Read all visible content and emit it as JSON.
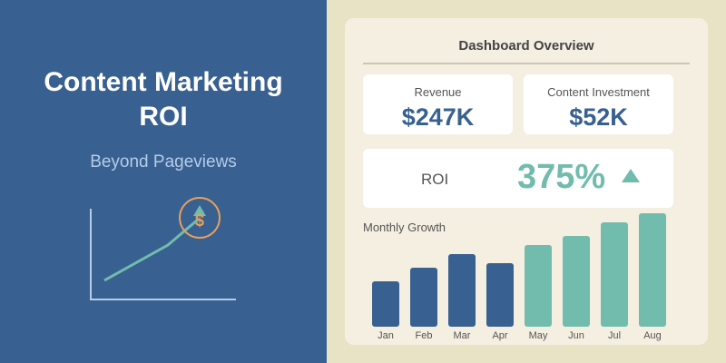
{
  "hero": {
    "title_line1": "Content Marketing",
    "title_line2": "ROI",
    "subtitle": "Beyond Pageviews",
    "icon": "dollar-sign-icon"
  },
  "dashboard": {
    "title": "Dashboard Overview",
    "revenue": {
      "label": "Revenue",
      "value": "$247K"
    },
    "investment": {
      "label": "Content Investment",
      "value": "$52K"
    },
    "roi": {
      "label": "ROI",
      "value": "375%",
      "trend": "up"
    }
  },
  "colors": {
    "primary": "#386090",
    "accent": "#72bcae",
    "highlight": "#e8a05a",
    "background": "#e9e3c5"
  },
  "chart_data": {
    "type": "bar",
    "title": "Monthly Growth",
    "categories": [
      "Jan",
      "Feb",
      "Mar",
      "Apr",
      "May",
      "Jun",
      "Jul",
      "Aug"
    ],
    "values": [
      50,
      65,
      80,
      70,
      90,
      100,
      115,
      125
    ],
    "bar_colors": [
      "#386090",
      "#386090",
      "#386090",
      "#386090",
      "#72bcae",
      "#72bcae",
      "#72bcae",
      "#72bcae"
    ],
    "grid": false
  }
}
